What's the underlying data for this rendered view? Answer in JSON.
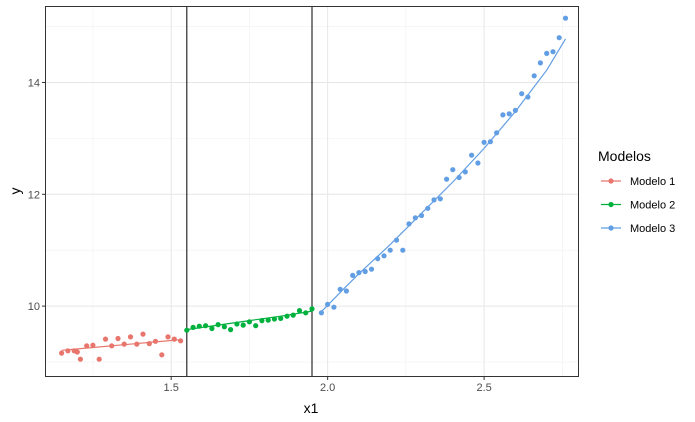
{
  "chart_data": {
    "type": "scatter",
    "xlabel": "x1",
    "ylabel": "y",
    "xlim": [
      1.1,
      2.8
    ],
    "ylim": [
      8.75,
      15.35
    ],
    "x_ticks": [
      1.5,
      2.0,
      2.5
    ],
    "y_ticks": [
      10,
      12,
      14
    ],
    "vertical_lines": [
      1.55,
      1.95
    ],
    "grid": true,
    "legend": {
      "title": "Modelos",
      "position": "right",
      "entries": [
        "Modelo 1",
        "Modelo 2",
        "Modelo 3"
      ]
    },
    "series": [
      {
        "name": "Modelo 1",
        "color": "#e8766d",
        "points": [
          [
            1.15,
            9.16
          ],
          [
            1.17,
            9.2
          ],
          [
            1.19,
            9.2
          ],
          [
            1.2,
            9.18
          ],
          [
            1.21,
            9.05
          ],
          [
            1.23,
            9.29
          ],
          [
            1.25,
            9.3
          ],
          [
            1.27,
            9.05
          ],
          [
            1.29,
            9.41
          ],
          [
            1.31,
            9.29
          ],
          [
            1.33,
            9.42
          ],
          [
            1.35,
            9.32
          ],
          [
            1.37,
            9.45
          ],
          [
            1.39,
            9.32
          ],
          [
            1.41,
            9.5
          ],
          [
            1.43,
            9.33
          ],
          [
            1.45,
            9.37
          ],
          [
            1.47,
            9.13
          ],
          [
            1.49,
            9.45
          ],
          [
            1.51,
            9.41
          ],
          [
            1.53,
            9.38
          ]
        ],
        "fit": [
          [
            1.15,
            9.21
          ],
          [
            1.25,
            9.26
          ],
          [
            1.35,
            9.31
          ],
          [
            1.45,
            9.36
          ],
          [
            1.53,
            9.4
          ]
        ]
      },
      {
        "name": "Modelo 2",
        "color": "#00b13e",
        "points": [
          [
            1.55,
            9.57
          ],
          [
            1.57,
            9.62
          ],
          [
            1.59,
            9.64
          ],
          [
            1.61,
            9.65
          ],
          [
            1.63,
            9.6
          ],
          [
            1.65,
            9.67
          ],
          [
            1.67,
            9.63
          ],
          [
            1.69,
            9.58
          ],
          [
            1.71,
            9.68
          ],
          [
            1.73,
            9.66
          ],
          [
            1.75,
            9.72
          ],
          [
            1.77,
            9.65
          ],
          [
            1.79,
            9.74
          ],
          [
            1.81,
            9.75
          ],
          [
            1.83,
            9.77
          ],
          [
            1.85,
            9.78
          ],
          [
            1.87,
            9.82
          ],
          [
            1.89,
            9.84
          ],
          [
            1.91,
            9.92
          ],
          [
            1.93,
            9.88
          ],
          [
            1.95,
            9.95
          ]
        ],
        "fit": [
          [
            1.55,
            9.58
          ],
          [
            1.65,
            9.66
          ],
          [
            1.75,
            9.74
          ],
          [
            1.85,
            9.82
          ],
          [
            1.95,
            9.91
          ]
        ]
      },
      {
        "name": "Modelo 3",
        "color": "#629ee3",
        "points": [
          [
            1.98,
            9.88
          ],
          [
            2.0,
            10.03
          ],
          [
            2.02,
            9.98
          ],
          [
            2.04,
            10.3
          ],
          [
            2.06,
            10.27
          ],
          [
            2.08,
            10.55
          ],
          [
            2.1,
            10.6
          ],
          [
            2.12,
            10.62
          ],
          [
            2.14,
            10.66
          ],
          [
            2.16,
            10.85
          ],
          [
            2.18,
            10.9
          ],
          [
            2.2,
            11.0
          ],
          [
            2.22,
            11.18
          ],
          [
            2.24,
            11.0
          ],
          [
            2.26,
            11.47
          ],
          [
            2.28,
            11.58
          ],
          [
            2.3,
            11.62
          ],
          [
            2.32,
            11.75
          ],
          [
            2.34,
            11.9
          ],
          [
            2.36,
            11.92
          ],
          [
            2.38,
            12.27
          ],
          [
            2.4,
            12.44
          ],
          [
            2.42,
            12.3
          ],
          [
            2.44,
            12.4
          ],
          [
            2.46,
            12.7
          ],
          [
            2.48,
            12.56
          ],
          [
            2.5,
            12.93
          ],
          [
            2.52,
            12.94
          ],
          [
            2.54,
            13.1
          ],
          [
            2.56,
            13.42
          ],
          [
            2.58,
            13.44
          ],
          [
            2.6,
            13.5
          ],
          [
            2.62,
            13.8
          ],
          [
            2.64,
            13.74
          ],
          [
            2.66,
            14.12
          ],
          [
            2.68,
            14.35
          ],
          [
            2.7,
            14.52
          ],
          [
            2.72,
            14.55
          ],
          [
            2.74,
            14.8
          ],
          [
            2.76,
            15.15
          ]
        ],
        "fit": [
          [
            1.98,
            9.9
          ],
          [
            2.05,
            10.3
          ],
          [
            2.1,
            10.58
          ],
          [
            2.2,
            11.1
          ],
          [
            2.3,
            11.66
          ],
          [
            2.4,
            12.22
          ],
          [
            2.5,
            12.82
          ],
          [
            2.6,
            13.48
          ],
          [
            2.7,
            14.22
          ],
          [
            2.76,
            14.78
          ]
        ]
      }
    ]
  }
}
